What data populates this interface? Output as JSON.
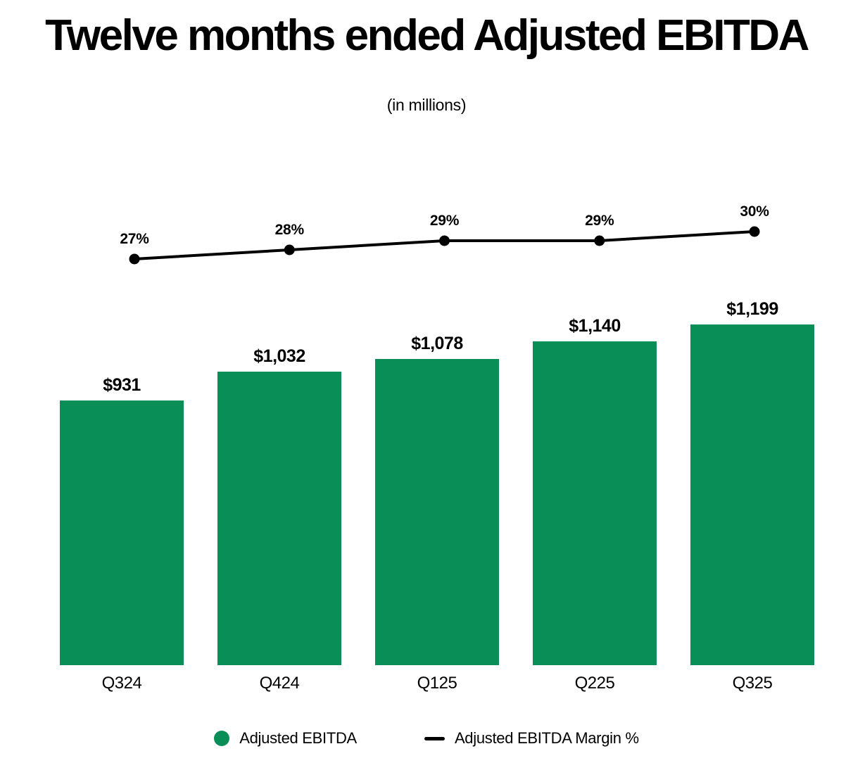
{
  "page": {
    "title": "Twelve months ended Adjusted EBITDA",
    "subtitle": "(in millions)"
  },
  "colors": {
    "bar_green": "#0A8E58",
    "line_black": "#000000",
    "text_black": "#000000",
    "background": "#FFFFFF"
  },
  "chart_data": {
    "type": "bar",
    "subtype": "bar-line-combo",
    "title": "Twelve months ended Adjusted EBITDA",
    "subtitle": "(in millions)",
    "categories": [
      "Q324",
      "Q424",
      "Q125",
      "Q225",
      "Q325"
    ],
    "series": [
      {
        "name": "Adjusted EBITDA",
        "type": "bar",
        "unit": "USD millions",
        "values": [
          931,
          1032,
          1078,
          1140,
          1199
        ],
        "labels": [
          "$931",
          "$1,032",
          "$1,078",
          "$1,140",
          "$1,199"
        ],
        "color": "#0A8E58"
      },
      {
        "name": "Adjusted EBITDA Margin %",
        "type": "line",
        "unit": "percent",
        "values": [
          27,
          28,
          29,
          29,
          30
        ],
        "labels": [
          "27%",
          "28%",
          "29%",
          "29%",
          "30%"
        ],
        "color": "#000000"
      }
    ],
    "ylim": [
      0,
      1199
    ],
    "grid": false,
    "axes_visible": false,
    "legend_position": "bottom"
  },
  "legend": {
    "items": [
      {
        "label": "Adjusted EBITDA",
        "marker": "circle-marker",
        "color": "#0A8E58"
      },
      {
        "label": "Adjusted EBITDA Margin %",
        "marker": "dash-marker",
        "color": "#000000"
      }
    ]
  }
}
